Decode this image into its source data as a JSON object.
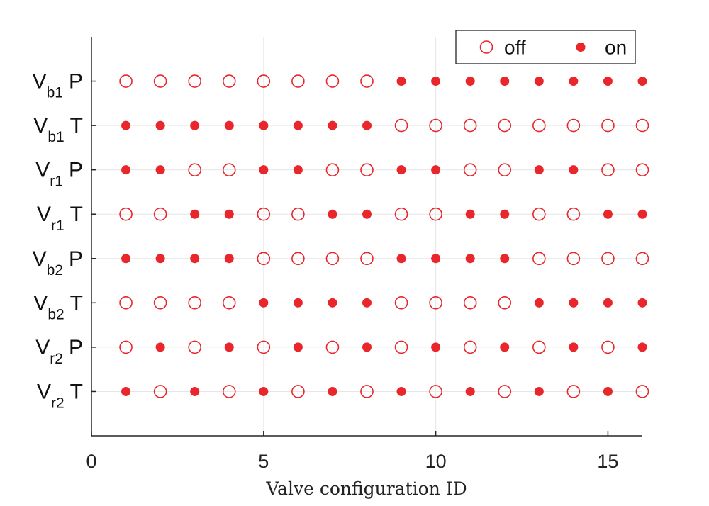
{
  "chart_data": {
    "type": "scatter",
    "title": "",
    "xlabel": "Valve configuration ID",
    "ylabel": "",
    "xlim": [
      0,
      16
    ],
    "ylim": [
      0,
      9
    ],
    "xticks": [
      0,
      5,
      10,
      15
    ],
    "grid": true,
    "legend": {
      "position": "top-right",
      "entries": [
        {
          "label": "off",
          "marker": "open-circle"
        },
        {
          "label": "on",
          "marker": "filled-circle"
        }
      ]
    },
    "marker_color": "#e8262b",
    "x": [
      1,
      2,
      3,
      4,
      5,
      6,
      7,
      8,
      9,
      10,
      11,
      12,
      13,
      14,
      15,
      16
    ],
    "rows": [
      {
        "name": "V",
        "sub": "b1",
        "suffix": "P",
        "y": 8,
        "states": [
          0,
          0,
          0,
          0,
          0,
          0,
          0,
          0,
          1,
          1,
          1,
          1,
          1,
          1,
          1,
          1
        ]
      },
      {
        "name": "V",
        "sub": "b1",
        "suffix": "T",
        "y": 7,
        "states": [
          1,
          1,
          1,
          1,
          1,
          1,
          1,
          1,
          0,
          0,
          0,
          0,
          0,
          0,
          0,
          0
        ]
      },
      {
        "name": "V",
        "sub": "r1",
        "suffix": "P",
        "y": 6,
        "states": [
          1,
          1,
          0,
          0,
          1,
          1,
          0,
          0,
          1,
          1,
          0,
          0,
          1,
          1,
          0,
          0
        ]
      },
      {
        "name": "V",
        "sub": "r1",
        "suffix": "T",
        "y": 5,
        "states": [
          0,
          0,
          1,
          1,
          0,
          0,
          1,
          1,
          0,
          0,
          1,
          1,
          0,
          0,
          1,
          1
        ]
      },
      {
        "name": "V",
        "sub": "b2",
        "suffix": "P",
        "y": 4,
        "states": [
          1,
          1,
          1,
          1,
          0,
          0,
          0,
          0,
          1,
          1,
          1,
          1,
          0,
          0,
          0,
          0
        ]
      },
      {
        "name": "V",
        "sub": "b2",
        "suffix": "T",
        "y": 3,
        "states": [
          0,
          0,
          0,
          0,
          1,
          1,
          1,
          1,
          0,
          0,
          0,
          0,
          1,
          1,
          1,
          1
        ]
      },
      {
        "name": "V",
        "sub": "r2",
        "suffix": "P",
        "y": 2,
        "states": [
          0,
          1,
          0,
          1,
          0,
          1,
          0,
          1,
          0,
          1,
          0,
          1,
          0,
          1,
          0,
          1
        ]
      },
      {
        "name": "V",
        "sub": "r2",
        "suffix": "T",
        "y": 1,
        "states": [
          1,
          0,
          1,
          0,
          1,
          0,
          1,
          0,
          1,
          0,
          1,
          0,
          1,
          0,
          1,
          0
        ]
      }
    ]
  }
}
